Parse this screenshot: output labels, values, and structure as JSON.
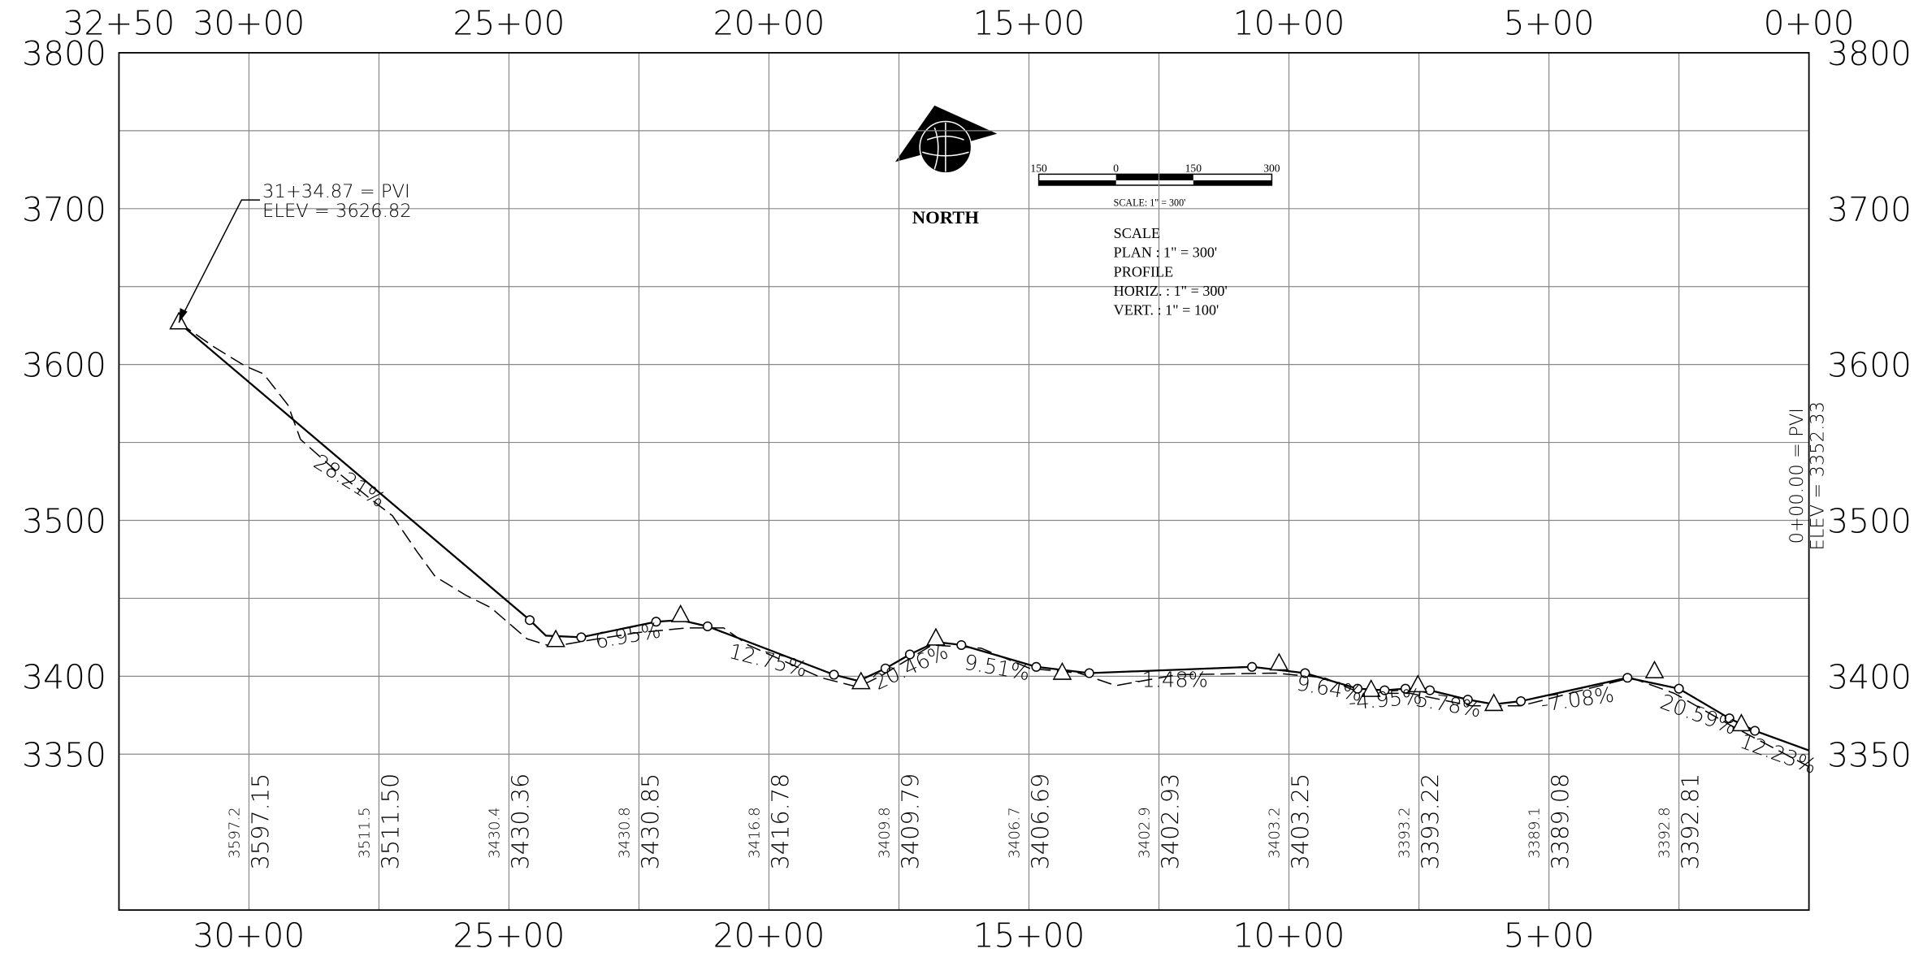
{
  "chart_data": {
    "type": "line",
    "xlim": [
      3250,
      0
    ],
    "ylim": [
      3250,
      3800
    ],
    "xticks": [
      {
        "value": 3000,
        "label": "30+00"
      },
      {
        "value": 2500,
        "label": "25+00"
      },
      {
        "value": 2000,
        "label": "20+00"
      },
      {
        "value": 1500,
        "label": "15+00"
      },
      {
        "value": 1000,
        "label": "10+00"
      },
      {
        "value": 500,
        "label": "5+00"
      }
    ],
    "x2ticks": [
      {
        "value": 3250,
        "label": "32+50"
      },
      {
        "value": 3000,
        "label": "30+00"
      },
      {
        "value": 2500,
        "label": "25+00"
      },
      {
        "value": 2000,
        "label": "20+00"
      },
      {
        "value": 1500,
        "label": "15+00"
      },
      {
        "value": 1000,
        "label": "10+00"
      },
      {
        "value": 500,
        "label": "5+00"
      },
      {
        "value": 0,
        "label": "0+00"
      }
    ],
    "yticks": [
      3800,
      3700,
      3600,
      3500,
      3400,
      3350
    ],
    "grid": true,
    "series": [
      {
        "color": "#000000",
        "style": "solid",
        "marker": "none",
        "x": [
          3134.87,
          2460,
          2429,
          2361,
          2217,
          2170,
          2118,
          1875,
          1828,
          1776,
          1729,
          1679,
          1630,
          1486,
          1384,
          1071,
          969,
          868,
          816,
          776,
          729,
          656,
          606,
          554,
          349,
          250,
          153,
          104,
          0
        ],
        "values": [
          3626.82,
          3436,
          3426,
          3425,
          3435,
          3436,
          3432,
          3401,
          3397,
          3405,
          3414,
          3422,
          3420,
          3406,
          3402,
          3406,
          3402,
          3392,
          3391,
          3392,
          3391,
          3385,
          3382,
          3384,
          3399,
          3392,
          3373,
          3365,
          3352.33
        ]
      },
      {
        "color": "#000000",
        "style": "dashed",
        "marker": "none",
        "x": [
          3134.87,
          3066,
          3007,
          2972,
          2925,
          2901,
          2830,
          2771,
          2724,
          2677,
          2642,
          2583,
          2535,
          2465,
          2417,
          2347,
          2252,
          2158,
          2087,
          2040,
          1899,
          1828,
          1781,
          1686,
          1592,
          1498,
          1403,
          1333,
          1215,
          1026,
          932,
          861,
          767,
          649,
          554,
          342,
          259,
          153,
          0
        ],
        "values": [
          3627,
          3611,
          3599,
          3594,
          3574,
          3552,
          3531,
          3515,
          3503,
          3480,
          3464,
          3452,
          3444,
          3424,
          3419,
          3423,
          3428,
          3431,
          3431,
          3420,
          3399,
          3393,
          3401,
          3420,
          3418,
          3405,
          3402,
          3394,
          3401,
          3402,
          3399,
          3389,
          3389,
          3381,
          3381,
          3399,
          3389,
          3369,
          3342
        ]
      },
      {
        "color": "#000000",
        "style": "none",
        "marker": "circle",
        "x": [
          2460,
          2361,
          2217,
          2118,
          1875,
          1776,
          1729,
          1630,
          1486,
          1384,
          1071,
          969,
          868,
          816,
          776,
          729,
          656,
          554,
          349,
          250,
          153,
          104
        ],
        "values": [
          3436,
          3425,
          3435,
          3432,
          3401,
          3405,
          3414,
          3420,
          3406,
          3402,
          3406,
          3402,
          3392,
          3391,
          3392,
          3391,
          3385,
          3384,
          3399,
          3392,
          3373,
          3365
        ]
      },
      {
        "color": "#000000",
        "style": "none",
        "marker": "triangle",
        "x": [
          3134.87,
          2410,
          2170,
          1823,
          1679,
          1436,
          1019,
          842,
          752,
          606,
          297,
          130
        ],
        "values": [
          3626.82,
          3423,
          3439,
          3396,
          3424,
          3402,
          3408,
          3391,
          3394,
          3382,
          3403,
          3369
        ]
      }
    ],
    "annotations": {
      "pvi_start": [
        "31+34.87  =  PVI",
        "ELEV =   3626.82"
      ],
      "pvi_end": [
        "0+00.00  =  PVI",
        "ELEV =   3352.33"
      ],
      "grades": [
        "28.21%",
        "6.95%",
        "12.75%",
        "20.46%",
        "9.51%",
        "-1.48%",
        "9.64%",
        "-4.95%",
        "5.78%",
        "-7.08%",
        "20.59%",
        "12.23%"
      ]
    },
    "elevation_table": {
      "existing": [
        3597.2,
        3511.5,
        3430.4,
        3430.8,
        3416.8,
        3409.8,
        3406.7,
        3402.9,
        3403.2,
        3393.2,
        3389.1,
        3392.8
      ],
      "proposed": [
        3597.15,
        3511.5,
        3430.36,
        3430.85,
        3416.78,
        3409.79,
        3406.69,
        3402.93,
        3403.25,
        3393.22,
        3389.08,
        3392.81
      ],
      "value_labels": [
        "3597.15",
        "3511.50",
        "3430.36",
        "3430.85",
        "3416.78",
        "3409.79",
        "3406.69",
        "3402.93",
        "3403.25",
        "3393.22",
        "3389.08",
        "3392.81"
      ]
    },
    "legend_block": {
      "north": "NORTH",
      "scale_bar": [
        "150",
        "0",
        "150",
        "300"
      ],
      "scale_caption": "SCALE: 1\" = 300'",
      "notes": [
        "SCALE",
        "PLAN : 1\" = 300'",
        "PROFILE",
        "HORIZ. : 1\" = 300'",
        "VERT. : 1\" = 100'"
      ]
    }
  }
}
